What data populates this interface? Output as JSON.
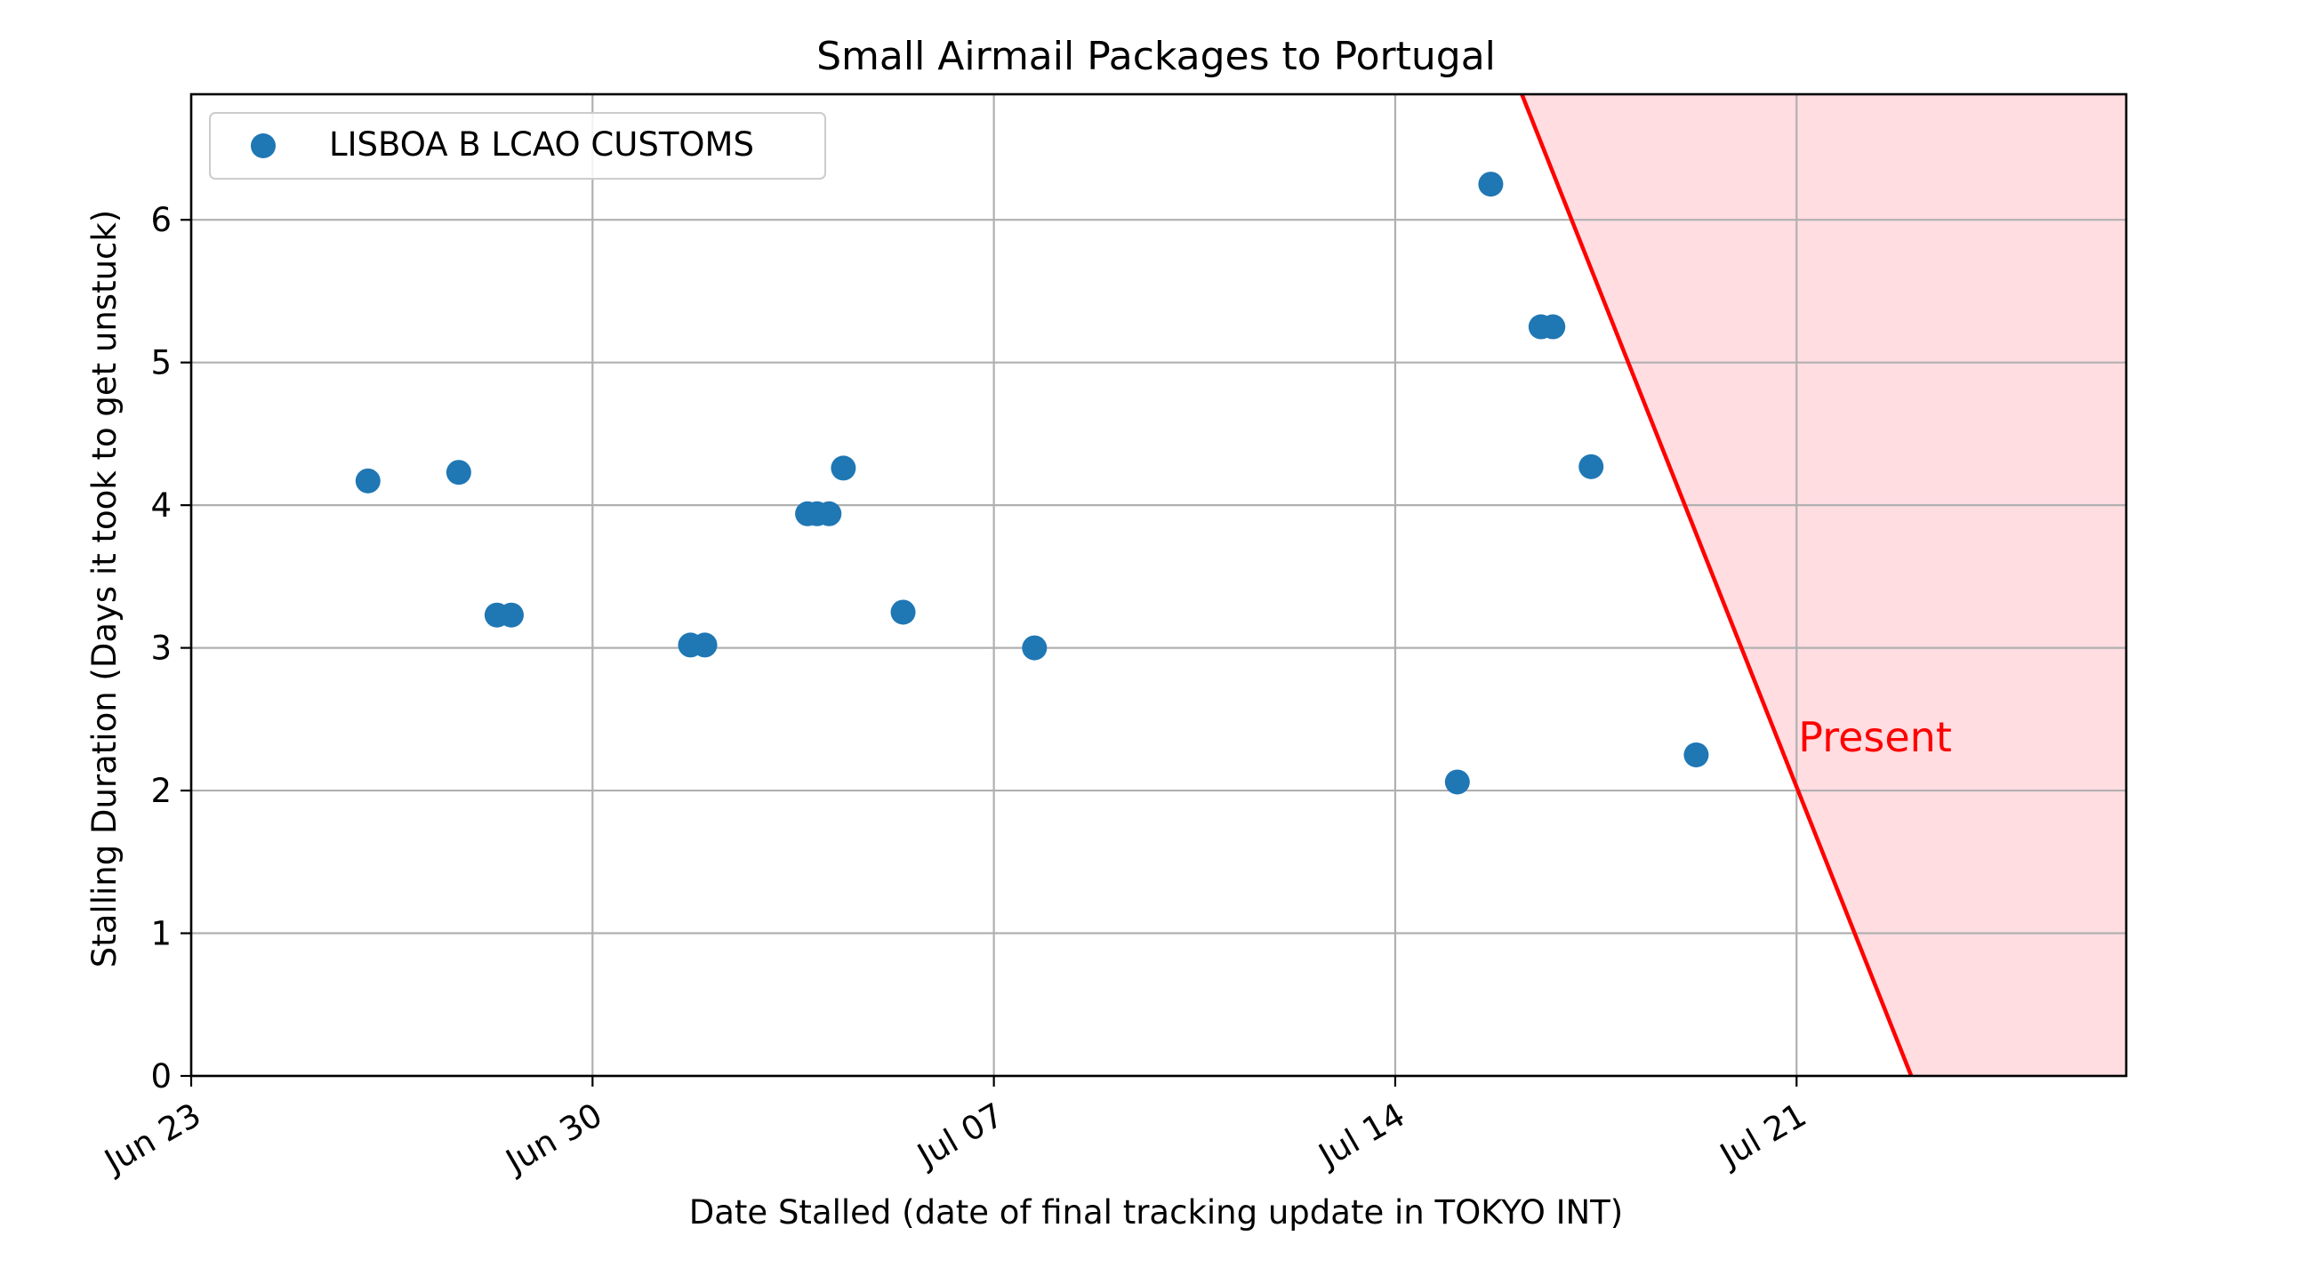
{
  "chart_data": {
    "type": "scatter",
    "title": "Small Airmail Packages to Portugal",
    "xlabel": "Date Stalled (date of final tracking update in TOKYO INT)",
    "ylabel": "Stalling Duration (Days it took to get unstuck)",
    "x_axis_type": "date",
    "xlim": [
      "2020-06-23",
      "2020-07-26T18:00"
    ],
    "ylim": [
      0,
      6.88
    ],
    "x_ticks": [
      {
        "date": "2020-06-23",
        "label": "Jun 23"
      },
      {
        "date": "2020-06-30",
        "label": "Jun 30"
      },
      {
        "date": "2020-07-07",
        "label": "Jul 07"
      },
      {
        "date": "2020-07-14",
        "label": "Jul 14"
      },
      {
        "date": "2020-07-21",
        "label": "Jul 21"
      }
    ],
    "y_ticks": [
      0,
      1,
      2,
      3,
      4,
      5,
      6
    ],
    "grid": true,
    "legend_position": "top-left",
    "series": [
      {
        "name": "LISBOA B LCAO CUSTOMS",
        "color": "#1f77b4",
        "points": [
          {
            "x": "2020-06-26T02:00",
            "y": 4.17
          },
          {
            "x": "2020-06-27T16:00",
            "y": 4.23
          },
          {
            "x": "2020-06-28T08:00",
            "y": 3.23
          },
          {
            "x": "2020-06-28T14:00",
            "y": 3.23
          },
          {
            "x": "2020-07-01T17:00",
            "y": 3.02
          },
          {
            "x": "2020-07-01T23:00",
            "y": 3.02
          },
          {
            "x": "2020-07-03T18:00",
            "y": 3.94
          },
          {
            "x": "2020-07-03T22:00",
            "y": 3.94
          },
          {
            "x": "2020-07-04T03:00",
            "y": 3.94
          },
          {
            "x": "2020-07-04T09:00",
            "y": 4.26
          },
          {
            "x": "2020-07-05T10:00",
            "y": 3.25
          },
          {
            "x": "2020-07-07T17:00",
            "y": 3.0
          },
          {
            "x": "2020-07-15T02:00",
            "y": 2.06
          },
          {
            "x": "2020-07-15T16:00",
            "y": 6.25
          },
          {
            "x": "2020-07-16T13:00",
            "y": 5.25
          },
          {
            "x": "2020-07-16T18:00",
            "y": 5.25
          },
          {
            "x": "2020-07-17T10:00",
            "y": 4.27
          },
          {
            "x": "2020-07-19T06:00",
            "y": 2.25
          }
        ]
      }
    ],
    "present_region": {
      "line": [
        {
          "x": "2020-07-16T05:00",
          "y": 6.88
        },
        {
          "x": "2020-07-23T00:00",
          "y": 0
        }
      ],
      "line_color": "#ff0000",
      "fill_color": "#ffdde1",
      "annotation": {
        "text": "Present",
        "x": "2020-07-21",
        "y": 2.35,
        "color": "#ff0000"
      }
    }
  }
}
